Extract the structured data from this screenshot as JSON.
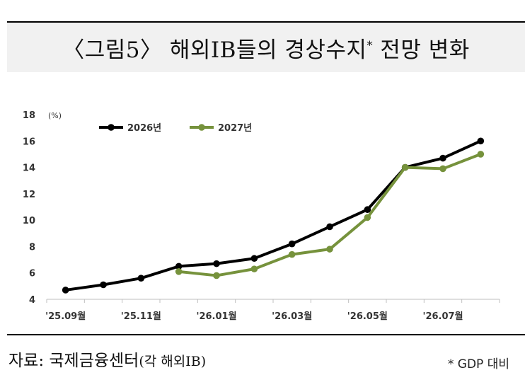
{
  "title": {
    "main": "〈그림5〉 해외IB들의 경상수지",
    "mark": "*",
    "rest": "전망 변화"
  },
  "source": {
    "label": "자료: 국제금융센터",
    "paren": "(각 해외IB)"
  },
  "footnote": "* GDP 대비",
  "colors": {
    "s2026": "#000000",
    "s2027": "#76923c",
    "axis": "#bfbfbf"
  },
  "chart_data": {
    "type": "line",
    "unit_label": "(%)",
    "ylim": [
      4,
      18
    ],
    "yticks": [
      4,
      6,
      8,
      10,
      12,
      14,
      16,
      18
    ],
    "x_count": 12,
    "x_tick_labels": [
      {
        "index": 0,
        "label": "'25.09월"
      },
      {
        "index": 2,
        "label": "'25.11월"
      },
      {
        "index": 4,
        "label": "'26.01월"
      },
      {
        "index": 6,
        "label": "'26.03월"
      },
      {
        "index": 8,
        "label": "'26.05월"
      },
      {
        "index": 10,
        "label": "'26.07월"
      }
    ],
    "legend_position": "top-left",
    "grid": false,
    "series": [
      {
        "name": "2026년",
        "color": "#000000",
        "values": [
          4.7,
          5.1,
          5.6,
          6.5,
          6.7,
          7.1,
          8.2,
          9.5,
          10.8,
          14.0,
          14.7,
          16.0
        ]
      },
      {
        "name": "2027년",
        "color": "#76923c",
        "values": [
          null,
          null,
          null,
          6.1,
          5.8,
          6.3,
          7.4,
          7.8,
          10.2,
          14.0,
          13.9,
          15.0
        ]
      }
    ]
  }
}
